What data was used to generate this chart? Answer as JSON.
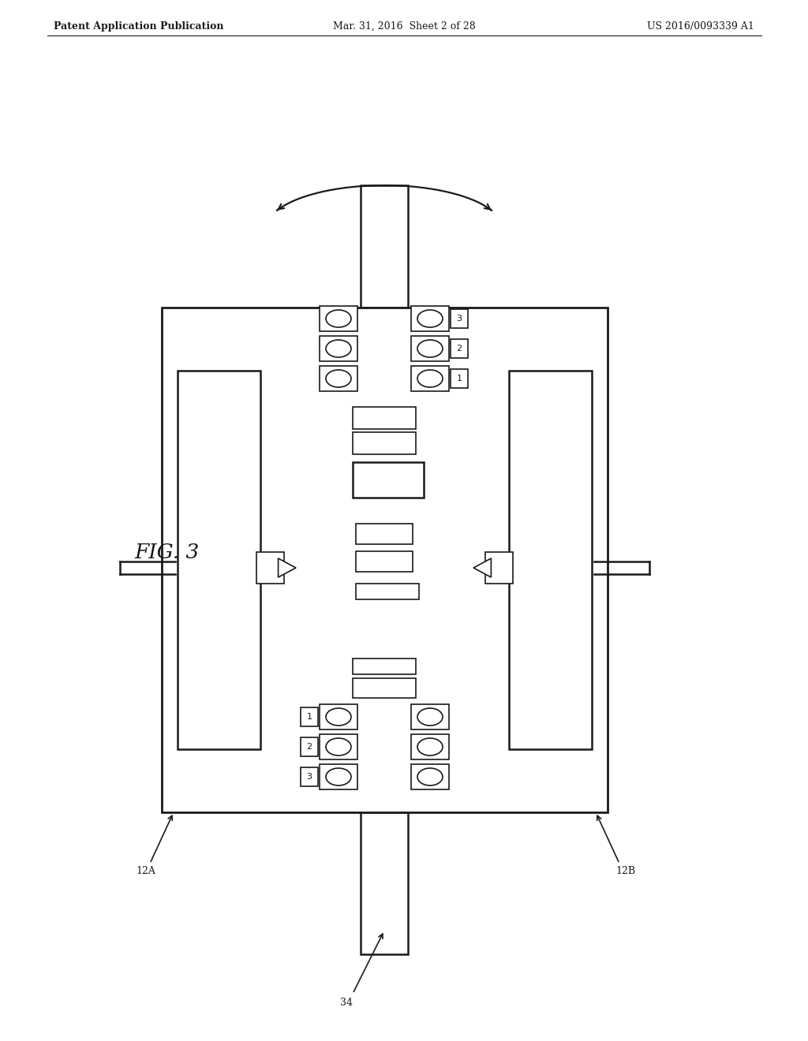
{
  "bg_color": "#ffffff",
  "line_color": "#1a1a1a",
  "header_left": "Patent Application Publication",
  "header_mid": "Mar. 31, 2016  Sheet 2 of 28",
  "header_right": "US 2016/0093339 A1",
  "fig_label": "FIG. 3",
  "label_12A": "12A",
  "label_12B": "12B",
  "label_34": "34"
}
